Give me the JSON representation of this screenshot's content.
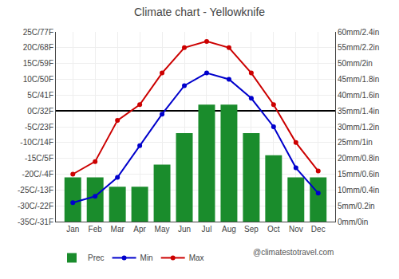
{
  "chart_data": {
    "type": "bar",
    "title": "Climate chart - Yellowknife",
    "categories": [
      "Jan",
      "Feb",
      "Mar",
      "Apr",
      "May",
      "Jun",
      "Jul",
      "Aug",
      "Sep",
      "Oct",
      "Nov",
      "Dec"
    ],
    "series": [
      {
        "name": "Prec",
        "type": "bar",
        "axis": "y2",
        "color": "#1a8c2c",
        "values": [
          14,
          14,
          11,
          11,
          18,
          28,
          37,
          37,
          28,
          21,
          14,
          14
        ]
      },
      {
        "name": "Min",
        "type": "line",
        "color": "#0000cc",
        "marker": "circle",
        "line_style": "solid",
        "values": [
          -29,
          -27,
          -21,
          -11,
          -1,
          8,
          12,
          10,
          4,
          -5,
          -18,
          -26
        ]
      },
      {
        "name": "Max",
        "type": "line",
        "color": "#cc0000",
        "marker": "circle",
        "line_style": "solid",
        "values": [
          -20,
          -16,
          -3,
          2,
          12,
          20,
          22,
          20,
          12,
          2,
          -10,
          -19
        ]
      }
    ],
    "ylim": [
      -35,
      25
    ],
    "yticks": [
      {
        "value": -35,
        "label": "-35C/-31F"
      },
      {
        "value": -30,
        "label": "-30C/-22F"
      },
      {
        "value": -25,
        "label": "-25C/-13F"
      },
      {
        "value": -20,
        "label": "-20C/-4F"
      },
      {
        "value": -15,
        "label": "-15C/5F"
      },
      {
        "value": -10,
        "label": "-10C/14F"
      },
      {
        "value": -5,
        "label": "-5C/23F"
      },
      {
        "value": 0,
        "label": "0C/32F"
      },
      {
        "value": 5,
        "label": "5C/41F"
      },
      {
        "value": 10,
        "label": "10C/50F"
      },
      {
        "value": 15,
        "label": "15C/59F"
      },
      {
        "value": 20,
        "label": "20C/68F"
      },
      {
        "value": 25,
        "label": "25C/77F"
      }
    ],
    "y2lim": [
      0,
      60
    ],
    "y2ticks": [
      {
        "value": 0,
        "label": "0mm/0in"
      },
      {
        "value": 5,
        "label": "5mm/0.2in"
      },
      {
        "value": 10,
        "label": "10mm/0.4in"
      },
      {
        "value": 15,
        "label": "15mm/0.6in"
      },
      {
        "value": 20,
        "label": "20mm/0.8in"
      },
      {
        "value": 25,
        "label": "25mm/1in"
      },
      {
        "value": 30,
        "label": "30mm/1.2in"
      },
      {
        "value": 35,
        "label": "35mm/1.4in"
      },
      {
        "value": 40,
        "label": "40mm/1.6in"
      },
      {
        "value": 45,
        "label": "45mm/1.8in"
      },
      {
        "value": 50,
        "label": "50mm/2in"
      },
      {
        "value": 55,
        "label": "55mm/2.2in"
      },
      {
        "value": 60,
        "label": "60mm/2.4in"
      }
    ],
    "grid": true,
    "legend": "lower left",
    "annotations": [
      "@climatestotravel.com"
    ]
  }
}
